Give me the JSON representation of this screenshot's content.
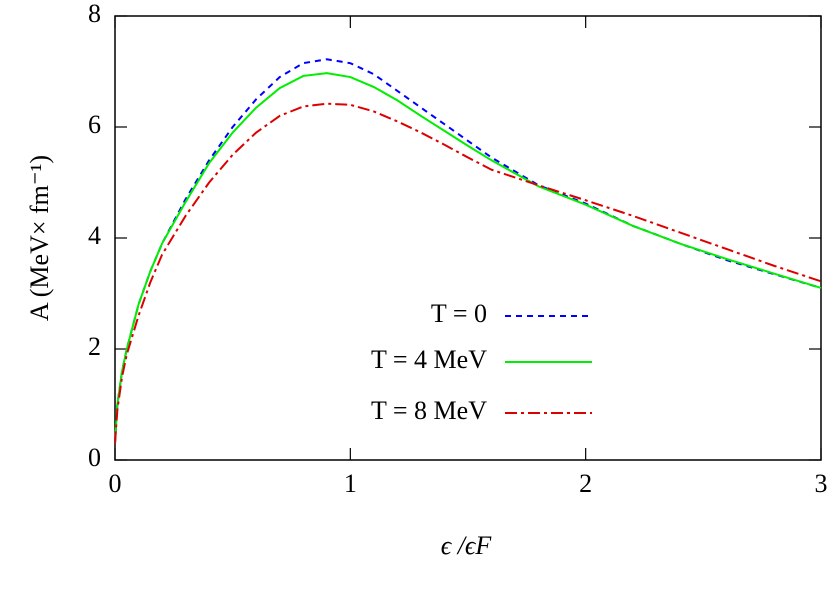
{
  "chart_data": {
    "type": "line",
    "x_label": "ϵ /ϵF",
    "y_label": "A (MeV× fm⁻¹)",
    "x": [
      0,
      0.01,
      0.03,
      0.05,
      0.1,
      0.15,
      0.2,
      0.3,
      0.4,
      0.5,
      0.6,
      0.7,
      0.8,
      0.9,
      1.0,
      1.1,
      1.2,
      1.3,
      1.4,
      1.5,
      1.6,
      1.8,
      2.0,
      2.2,
      2.4,
      2.6,
      2.8,
      3.0
    ],
    "series": [
      {
        "name": "T = 0",
        "color": "#0000ff",
        "dash": "6,5",
        "values": [
          0.3,
          1.0,
          1.6,
          2.0,
          2.8,
          3.4,
          3.9,
          4.7,
          5.4,
          6.0,
          6.5,
          6.9,
          7.15,
          7.22,
          7.15,
          6.95,
          6.65,
          6.35,
          6.05,
          5.75,
          5.45,
          4.95,
          4.62,
          4.22,
          3.9,
          3.6,
          3.35,
          3.1
        ]
      },
      {
        "name": "T = 4 MeV",
        "color": "#00ee00",
        "dash": "",
        "values": [
          0.3,
          1.0,
          1.6,
          2.0,
          2.8,
          3.4,
          3.9,
          4.65,
          5.35,
          5.9,
          6.35,
          6.7,
          6.92,
          6.97,
          6.9,
          6.72,
          6.48,
          6.2,
          5.93,
          5.66,
          5.4,
          4.93,
          4.6,
          4.22,
          3.9,
          3.62,
          3.36,
          3.1
        ]
      },
      {
        "name": "T = 8 MeV",
        "color": "#dd0000",
        "dash": "12,4,3,4",
        "values": [
          0.3,
          0.9,
          1.5,
          1.9,
          2.6,
          3.2,
          3.7,
          4.4,
          5.0,
          5.5,
          5.9,
          6.2,
          6.37,
          6.42,
          6.4,
          6.28,
          6.1,
          5.9,
          5.68,
          5.45,
          5.23,
          4.95,
          4.68,
          4.4,
          4.1,
          3.8,
          3.5,
          3.22
        ]
      }
    ],
    "xlim": [
      0,
      3
    ],
    "xticks": [
      0,
      1,
      2,
      3
    ],
    "ylim": [
      0,
      8
    ],
    "yticks": [
      0,
      2,
      4,
      6,
      8
    ],
    "legend": "lower right"
  }
}
